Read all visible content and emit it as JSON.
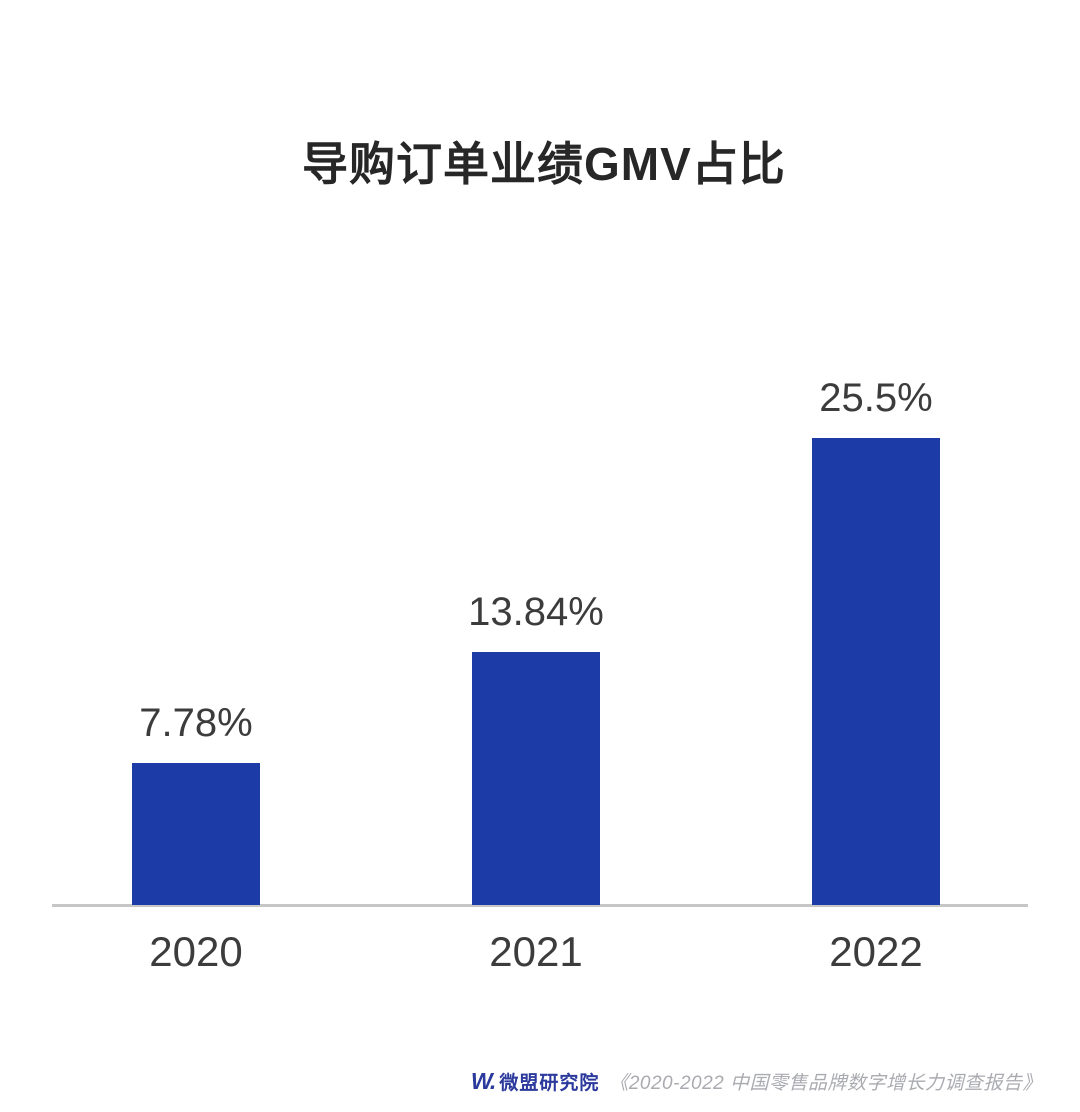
{
  "title": "导购订单业绩GMV占比",
  "chart_data": {
    "type": "bar",
    "title": "导购订单业绩GMV占比",
    "categories": [
      "2020",
      "2021",
      "2022"
    ],
    "values": [
      7.78,
      13.84,
      25.5
    ],
    "value_labels": [
      "7.78%",
      "13.84%",
      "25.5%"
    ],
    "xlabel": "",
    "ylabel": "",
    "ylim": [
      0,
      27
    ],
    "grid": false,
    "legend": false,
    "bar_color": "#1c3ba6",
    "axis_color": "#c6c6c6",
    "label_color": "#3c3c3c"
  },
  "footer": {
    "logo_mark": "W.",
    "logo_name": "微盟研究院",
    "citation": "《2020-2022 中国零售品牌数字增长力调查报告》"
  },
  "colors": {
    "background": "#ffffff",
    "bar_blue": "#1c3ba6",
    "title_text": "#272727",
    "label_text": "#3c3c3c",
    "axis_line": "#c6c6c6",
    "logo_blue": "#2b3a9c",
    "citation_grey": "#aaabb0"
  }
}
